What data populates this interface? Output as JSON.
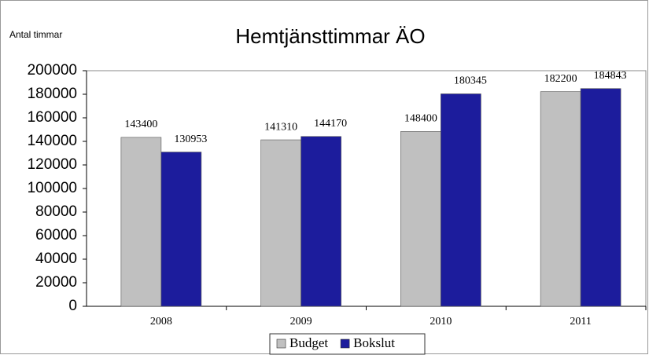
{
  "chart_data": {
    "type": "bar",
    "title": "Hemtjänsttimmar ÄO",
    "y_label": "Antal timmar",
    "categories": [
      "2008",
      "2009",
      "2010",
      "2011"
    ],
    "series": [
      {
        "name": "Budget",
        "color": "#c0c0c0",
        "values": [
          143400,
          141310,
          148400,
          182200
        ]
      },
      {
        "name": "Bokslut",
        "color": "#1c1c9c",
        "values": [
          130953,
          144170,
          180345,
          184843
        ]
      }
    ],
    "ylim": [
      0,
      200000
    ],
    "yticks": [
      0,
      20000,
      40000,
      60000,
      80000,
      100000,
      120000,
      140000,
      160000,
      180000,
      200000
    ],
    "grid": false,
    "legend": "bottom"
  }
}
